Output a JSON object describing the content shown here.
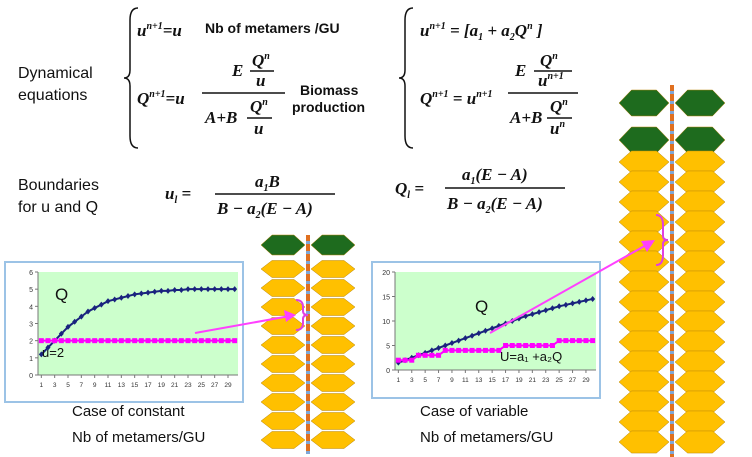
{
  "labels": {
    "dynamical": [
      "Dynamical",
      "equations"
    ],
    "boundaries": [
      "Boundaries",
      "for u and Q"
    ],
    "nb_metamers": "Nb of metamers /GU",
    "biomass": [
      "Biomass",
      "production"
    ],
    "captions": [
      [
        "Case of constant",
        "Nb of metamers/GU"
      ],
      [
        "Case of variable",
        "Nb of metamers/GU"
      ]
    ]
  },
  "equations": {
    "left_u": [
      "u",
      "n+1",
      "=u"
    ],
    "left_Q": [
      "Q",
      "n+1",
      "=u",
      "E",
      "Q",
      "n",
      "u",
      "A+B",
      "Q",
      "n",
      "u"
    ],
    "right_u": [
      "u",
      "n+1",
      " = [a",
      "1",
      " + a",
      "2",
      "Q",
      "n",
      " ]"
    ],
    "right_Q": [
      "Q",
      "n+1",
      " = u",
      "n+1",
      "E",
      "Q",
      "n",
      "u",
      "n+1",
      "A+B",
      "Q",
      "n",
      "u",
      "n"
    ],
    "u_bound": [
      "u",
      "l",
      " = ",
      "a",
      "1",
      "B",
      "B − a",
      "2",
      "(E − A)"
    ],
    "Q_bound": [
      "Q",
      "l",
      " = ",
      "a",
      "1",
      "(E − A)",
      "B − a",
      "2",
      "(E − A)"
    ]
  },
  "chart_data": [
    {
      "type": "line",
      "x": [
        1,
        2,
        3,
        4,
        5,
        6,
        7,
        8,
        9,
        10,
        11,
        12,
        13,
        14,
        15,
        16,
        17,
        18,
        19,
        20,
        21,
        22,
        23,
        24,
        25,
        26,
        27,
        28,
        29,
        30
      ],
      "xlim": [
        0.5,
        30.5
      ],
      "xticks": [
        1,
        3,
        5,
        7,
        9,
        11,
        13,
        15,
        17,
        19,
        21,
        23,
        25,
        27,
        29
      ],
      "ylim": [
        0,
        6
      ],
      "yticks": [
        0,
        1,
        2,
        3,
        4,
        5,
        6
      ],
      "series": [
        {
          "name": "Q",
          "color": "#1a237e",
          "values": [
            1.2,
            1.6,
            2.0,
            2.4,
            2.8,
            3.1,
            3.4,
            3.7,
            3.9,
            4.1,
            4.3,
            4.4,
            4.5,
            4.6,
            4.7,
            4.75,
            4.8,
            4.85,
            4.9,
            4.9,
            4.95,
            4.95,
            5,
            5,
            5,
            5,
            5,
            5,
            5,
            5
          ]
        },
        {
          "name": "u=2",
          "color": "#ff00ff",
          "values": [
            2,
            2,
            2,
            2,
            2,
            2,
            2,
            2,
            2,
            2,
            2,
            2,
            2,
            2,
            2,
            2,
            2,
            2,
            2,
            2,
            2,
            2,
            2,
            2,
            2,
            2,
            2,
            2,
            2,
            2
          ]
        }
      ]
    },
    {
      "type": "line",
      "x": [
        1,
        2,
        3,
        4,
        5,
        6,
        7,
        8,
        9,
        10,
        11,
        12,
        13,
        14,
        15,
        16,
        17,
        18,
        19,
        20,
        21,
        22,
        23,
        24,
        25,
        26,
        27,
        28,
        29,
        30
      ],
      "xlim": [
        0.5,
        30.5
      ],
      "xticks": [
        1,
        3,
        5,
        7,
        9,
        11,
        13,
        15,
        17,
        19,
        21,
        23,
        25,
        27,
        29
      ],
      "ylim": [
        0,
        20
      ],
      "yticks": [
        0,
        5,
        10,
        15,
        20
      ],
      "series": [
        {
          "name": "Q",
          "color": "#1a237e",
          "values": [
            1.5,
            2.0,
            2.5,
            3.0,
            3.5,
            4.0,
            4.5,
            5.0,
            5.5,
            6.0,
            6.5,
            7.0,
            7.5,
            8.0,
            8.5,
            9.0,
            9.5,
            10.0,
            10.5,
            11.0,
            11.4,
            11.8,
            12.2,
            12.6,
            13.0,
            13.3,
            13.6,
            13.9,
            14.2,
            14.5
          ]
        },
        {
          "name": "U=a₁ +a₂Q",
          "color": "#ff00ff",
          "values": [
            2,
            2,
            2,
            3,
            3,
            3,
            3,
            4,
            4,
            4,
            4,
            4,
            4,
            4,
            4,
            4,
            5,
            5,
            5,
            5,
            5,
            5,
            5,
            5,
            6,
            6,
            6,
            6,
            6,
            6
          ]
        }
      ]
    }
  ]
}
